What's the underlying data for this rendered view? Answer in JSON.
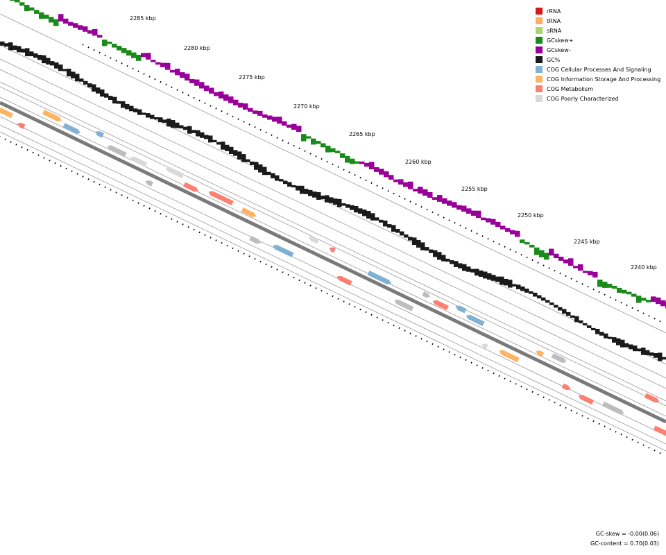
{
  "map": {
    "scale_labels": [
      {
        "id": "2285",
        "text": "2285 kbp"
      },
      {
        "id": "2280",
        "text": "2280 kbp"
      },
      {
        "id": "2275",
        "text": "2275 kbp"
      },
      {
        "id": "2270",
        "text": "2270 kbp"
      },
      {
        "id": "2265",
        "text": "2265 kbp"
      },
      {
        "id": "2260",
        "text": "2260 kbp"
      },
      {
        "id": "2255",
        "text": "2255 kbp"
      },
      {
        "id": "2250",
        "text": "2250 kbp"
      },
      {
        "id": "2245",
        "text": "2245 kbp"
      },
      {
        "id": "2240",
        "text": "2240 kbp"
      }
    ],
    "colors": {
      "gc_skew_plus": "#1a8a1a",
      "gc_skew_minus": "#990099",
      "gc_content": "#1a1a1a",
      "backbone": "#7a7a7a",
      "ring_line": "#9a9a9a"
    }
  },
  "legend": [
    {
      "label": "rRNA",
      "color": "#d7191c"
    },
    {
      "label": "tRNA",
      "color": "#fdae61"
    },
    {
      "label": "sRNA",
      "color": "#a6d96a"
    },
    {
      "label": "GCskew+",
      "color": "#1a8a1a"
    },
    {
      "label": "GCskew-",
      "color": "#990099"
    },
    {
      "label": "GC%",
      "color": "#1a1a1a"
    },
    {
      "label": "COG Cellular Processes And Signaling",
      "color": "#80b1d3"
    },
    {
      "label": "COG Information Storage And Processing",
      "color": "#fdb462"
    },
    {
      "label": "COG Metabolism",
      "color": "#fb8072"
    },
    {
      "label": "COG Poorly Characterized",
      "color": "#d9d9d9"
    }
  ],
  "stats": {
    "gc_skew": "GC-skew = -0.00(0.06)",
    "gc_content": "GC-content = 0.70(0.03)"
  }
}
